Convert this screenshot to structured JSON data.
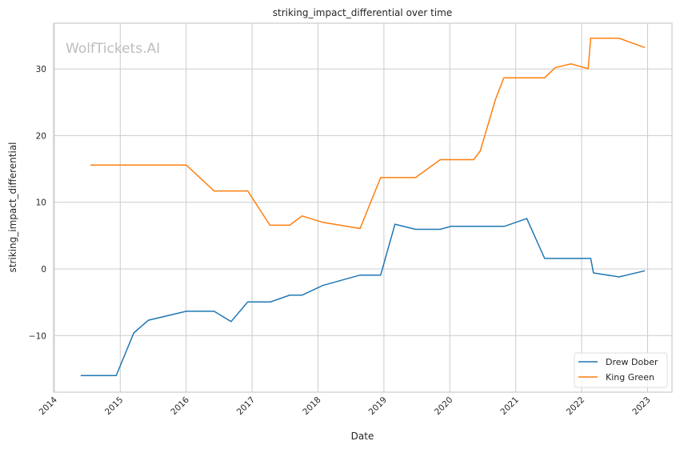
{
  "chart_data": {
    "type": "line",
    "title": "striking_impact_differential over time",
    "xlabel": "Date",
    "ylabel": "striking_impact_differential",
    "watermark": "WolfTickets.AI",
    "x_ticks": [
      "2014",
      "2015",
      "2016",
      "2017",
      "2018",
      "2019",
      "2020",
      "2021",
      "2022",
      "2023"
    ],
    "y_ticks": [
      -10,
      0,
      10,
      20,
      30
    ],
    "xlim": [
      "2014-01-01",
      "2023-05-01"
    ],
    "ylim": [
      -18.5,
      36.9
    ],
    "grid": true,
    "legend_position": "lower-right",
    "series": [
      {
        "name": "Drew Dober",
        "color": "#1f77b4",
        "points": [
          [
            "2014-05-27",
            -16.0
          ],
          [
            "2014-12-10",
            -16.0
          ],
          [
            "2015-03-17",
            -9.6
          ],
          [
            "2015-06-06",
            -7.7
          ],
          [
            "2016-01-02",
            -6.35
          ],
          [
            "2016-06-04",
            -6.35
          ],
          [
            "2016-09-06",
            -7.9
          ],
          [
            "2016-12-08",
            -4.95
          ],
          [
            "2017-04-13",
            -4.95
          ],
          [
            "2017-07-28",
            -3.94
          ],
          [
            "2017-10-05",
            -3.94
          ],
          [
            "2018-01-27",
            -2.49
          ],
          [
            "2018-08-22",
            -0.93
          ],
          [
            "2018-12-14",
            -0.93
          ],
          [
            "2019-03-03",
            6.7
          ],
          [
            "2019-06-25",
            5.94
          ],
          [
            "2019-11-09",
            5.94
          ],
          [
            "2020-01-08",
            6.39
          ],
          [
            "2020-10-30",
            6.39
          ],
          [
            "2021-03-03",
            7.55
          ],
          [
            "2021-06-10",
            1.57
          ],
          [
            "2022-02-20",
            1.57
          ],
          [
            "2022-03-07",
            -0.6
          ],
          [
            "2022-07-27",
            -1.2
          ],
          [
            "2022-12-17",
            -0.28
          ]
        ]
      },
      {
        "name": "King Green",
        "color": "#ff7f0e",
        "points": [
          [
            "2014-07-20",
            15.58
          ],
          [
            "2016-01-02",
            15.58
          ],
          [
            "2016-06-04",
            11.69
          ],
          [
            "2016-12-08",
            11.69
          ],
          [
            "2017-04-10",
            6.55
          ],
          [
            "2017-07-28",
            6.55
          ],
          [
            "2017-10-05",
            7.95
          ],
          [
            "2018-01-27",
            6.99
          ],
          [
            "2018-08-22",
            6.06
          ],
          [
            "2018-12-14",
            13.7
          ],
          [
            "2019-06-25",
            13.7
          ],
          [
            "2019-11-09",
            16.39
          ],
          [
            "2020-05-12",
            16.39
          ],
          [
            "2020-06-18",
            17.7
          ],
          [
            "2020-09-10",
            25.4
          ],
          [
            "2020-10-27",
            28.67
          ],
          [
            "2021-06-10",
            28.67
          ],
          [
            "2021-08-08",
            30.2
          ],
          [
            "2021-11-03",
            30.76
          ],
          [
            "2022-02-06",
            30.04
          ],
          [
            "2022-02-20",
            34.6
          ],
          [
            "2022-07-27",
            34.6
          ],
          [
            "2022-12-17",
            33.2
          ]
        ]
      }
    ]
  }
}
